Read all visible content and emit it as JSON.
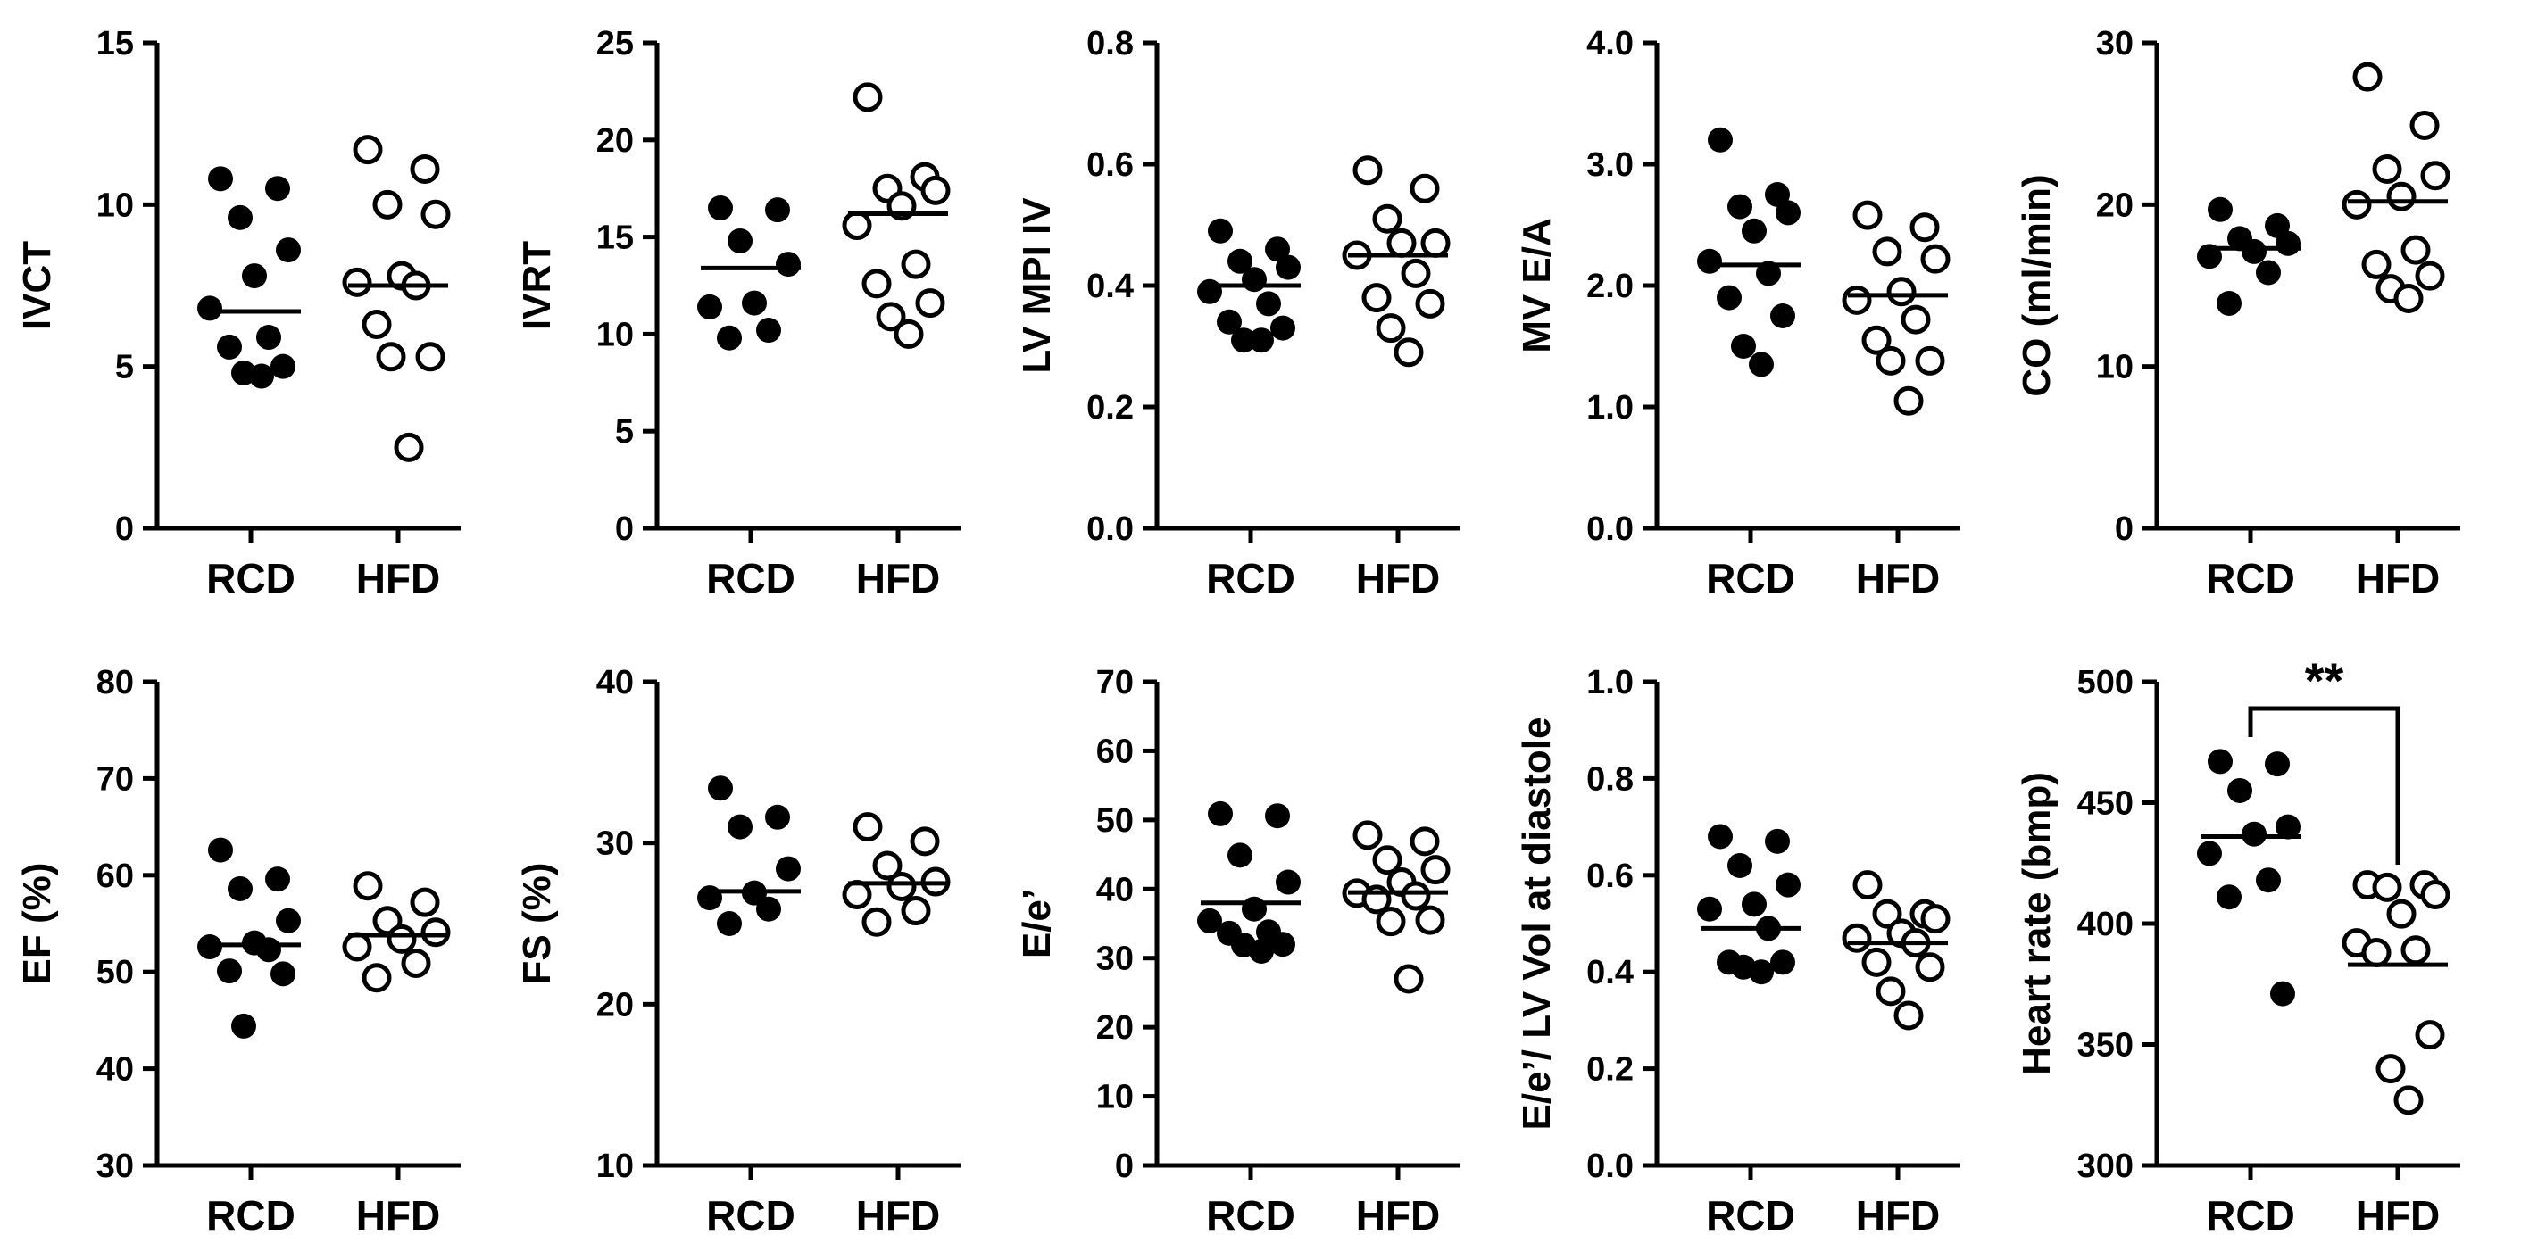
{
  "chart_data": [
    {
      "type": "scatter",
      "ylabel": "IVCT",
      "ylim": [
        0,
        15
      ],
      "yticks": [
        0,
        5,
        10,
        15
      ],
      "tick_labels": [
        "0",
        "5",
        "10",
        "15"
      ],
      "categories": [
        "RCD",
        "HFD"
      ],
      "series": [
        {
          "name": "RCD",
          "style": "filled",
          "values": [
            10.8,
            10.5,
            9.6,
            8.6,
            7.8,
            6.8,
            5.9,
            5.6,
            5.0,
            4.8,
            4.7
          ],
          "mean": 6.7
        },
        {
          "name": "HFD",
          "style": "open",
          "values": [
            11.7,
            11.1,
            10.0,
            9.7,
            7.8,
            7.6,
            7.5,
            6.3,
            5.3,
            5.3,
            2.5
          ],
          "mean": 7.5
        }
      ]
    },
    {
      "type": "scatter",
      "ylabel": "IVRT",
      "ylim": [
        0,
        25
      ],
      "yticks": [
        0,
        5,
        10,
        15,
        20,
        25
      ],
      "tick_labels": [
        "0",
        "5",
        "10",
        "15",
        "20",
        "25"
      ],
      "categories": [
        "RCD",
        "HFD"
      ],
      "series": [
        {
          "name": "RCD",
          "style": "filled",
          "values": [
            16.5,
            16.4,
            14.8,
            13.6,
            11.6,
            11.4,
            10.2,
            9.8
          ],
          "mean": 13.4
        },
        {
          "name": "HFD",
          "style": "open",
          "values": [
            22.2,
            18.1,
            17.5,
            17.4,
            16.6,
            15.6,
            13.6,
            12.6,
            11.6,
            10.9,
            10.0
          ],
          "mean": 16.2
        }
      ]
    },
    {
      "type": "scatter",
      "ylabel": "LV MPI IV",
      "ylim": [
        0.0,
        0.8
      ],
      "yticks": [
        0.0,
        0.2,
        0.4,
        0.6,
        0.8
      ],
      "tick_labels": [
        "0.0",
        "0.2",
        "0.4",
        "0.6",
        "0.8"
      ],
      "categories": [
        "RCD",
        "HFD"
      ],
      "series": [
        {
          "name": "RCD",
          "style": "filled",
          "values": [
            0.49,
            0.46,
            0.44,
            0.43,
            0.41,
            0.39,
            0.37,
            0.34,
            0.33,
            0.31,
            0.31
          ],
          "mean": 0.4
        },
        {
          "name": "HFD",
          "style": "open",
          "values": [
            0.59,
            0.56,
            0.51,
            0.47,
            0.47,
            0.45,
            0.42,
            0.38,
            0.37,
            0.33,
            0.29
          ],
          "mean": 0.45
        }
      ]
    },
    {
      "type": "scatter",
      "ylabel": "MV E/A",
      "ylim": [
        0.0,
        4.0
      ],
      "yticks": [
        0.0,
        1.0,
        2.0,
        3.0,
        4.0
      ],
      "tick_labels": [
        "0.0",
        "1.0",
        "2.0",
        "3.0",
        "4.0"
      ],
      "categories": [
        "RCD",
        "HFD"
      ],
      "series": [
        {
          "name": "RCD",
          "style": "filled",
          "values": [
            3.2,
            2.75,
            2.65,
            2.6,
            2.45,
            2.2,
            2.1,
            1.9,
            1.75,
            1.5,
            1.35
          ],
          "mean": 2.17
        },
        {
          "name": "HFD",
          "style": "open",
          "values": [
            2.58,
            2.48,
            2.28,
            2.22,
            1.95,
            1.88,
            1.72,
            1.55,
            1.38,
            1.38,
            1.05
          ],
          "mean": 1.92
        }
      ]
    },
    {
      "type": "scatter",
      "ylabel": "CO (ml/min)",
      "ylim": [
        0,
        30
      ],
      "yticks": [
        0,
        10,
        20,
        30
      ],
      "tick_labels": [
        "0",
        "10",
        "20",
        "30"
      ],
      "categories": [
        "RCD",
        "HFD"
      ],
      "series": [
        {
          "name": "RCD",
          "style": "filled",
          "values": [
            19.7,
            18.7,
            17.9,
            17.6,
            17.1,
            16.8,
            15.8,
            13.9
          ],
          "mean": 17.3
        },
        {
          "name": "HFD",
          "style": "open",
          "values": [
            27.9,
            24.9,
            22.2,
            21.8,
            20.5,
            20.0,
            17.2,
            16.3,
            15.6,
            14.8,
            14.2
          ],
          "mean": 20.2
        }
      ]
    },
    {
      "type": "scatter",
      "ylabel": "EF (%)",
      "ylim": [
        30,
        80
      ],
      "yticks": [
        30,
        40,
        50,
        60,
        70,
        80
      ],
      "tick_labels": [
        "30",
        "40",
        "50",
        "60",
        "70",
        "80"
      ],
      "categories": [
        "RCD",
        "HFD"
      ],
      "series": [
        {
          "name": "RCD",
          "style": "filled",
          "values": [
            62.6,
            59.6,
            58.6,
            55.3,
            53.0,
            52.6,
            52.3,
            50.1,
            49.8,
            44.4
          ],
          "mean": 52.8
        },
        {
          "name": "HFD",
          "style": "open",
          "values": [
            58.9,
            57.2,
            55.3,
            54.1,
            53.4,
            52.6,
            50.9,
            49.4
          ],
          "mean": 53.8
        }
      ]
    },
    {
      "type": "scatter",
      "ylabel": "FS (%)",
      "ylim": [
        10,
        40
      ],
      "yticks": [
        10,
        20,
        30,
        40
      ],
      "tick_labels": [
        "10",
        "20",
        "30",
        "40"
      ],
      "categories": [
        "RCD",
        "HFD"
      ],
      "series": [
        {
          "name": "RCD",
          "style": "filled",
          "values": [
            33.4,
            31.6,
            31.0,
            28.4,
            26.9,
            26.6,
            25.9,
            25.0
          ],
          "mean": 27.0
        },
        {
          "name": "HFD",
          "style": "open",
          "values": [
            31.0,
            30.1,
            28.6,
            27.6,
            27.3,
            26.8,
            25.8,
            25.1
          ],
          "mean": 27.5
        }
      ]
    },
    {
      "type": "scatter",
      "ylabel": "E/e’",
      "ylim": [
        0,
        70
      ],
      "yticks": [
        0,
        10,
        20,
        30,
        40,
        50,
        60,
        70
      ],
      "tick_labels": [
        "0",
        "10",
        "20",
        "30",
        "40",
        "50",
        "60",
        "70"
      ],
      "categories": [
        "RCD",
        "HFD"
      ],
      "series": [
        {
          "name": "RCD",
          "style": "filled",
          "values": [
            50.9,
            50.6,
            44.9,
            41.0,
            37.1,
            35.4,
            33.8,
            33.6,
            32.0,
            31.9,
            31.0
          ],
          "mean": 38.0
        },
        {
          "name": "HFD",
          "style": "open",
          "values": [
            47.8,
            46.9,
            44.2,
            42.8,
            41.0,
            39.4,
            39.0,
            38.5,
            35.5,
            35.3,
            27.0
          ],
          "mean": 39.5
        }
      ]
    },
    {
      "type": "scatter",
      "ylabel": "E/e’/ LV Vol at diastole",
      "ylim": [
        0.0,
        1.0
      ],
      "yticks": [
        0.0,
        0.2,
        0.4,
        0.6,
        0.8,
        1.0
      ],
      "tick_labels": [
        "0.0",
        "0.2",
        "0.4",
        "0.6",
        "0.8",
        "1.0"
      ],
      "categories": [
        "RCD",
        "HFD"
      ],
      "series": [
        {
          "name": "RCD",
          "style": "filled",
          "values": [
            0.68,
            0.67,
            0.62,
            0.58,
            0.54,
            0.53,
            0.49,
            0.42,
            0.42,
            0.41,
            0.4
          ],
          "mean": 0.49
        },
        {
          "name": "HFD",
          "style": "open",
          "values": [
            0.58,
            0.52,
            0.52,
            0.51,
            0.48,
            0.47,
            0.46,
            0.42,
            0.41,
            0.36,
            0.31
          ],
          "mean": 0.46
        }
      ]
    },
    {
      "type": "scatter",
      "ylabel": "Heart rate (bmp)",
      "ylim": [
        300,
        500
      ],
      "yticks": [
        300,
        350,
        400,
        450,
        500
      ],
      "tick_labels": [
        "300",
        "350",
        "400",
        "450",
        "500"
      ],
      "categories": [
        "RCD",
        "HFD"
      ],
      "significance": "**",
      "series": [
        {
          "name": "RCD",
          "style": "filled",
          "values": [
            467,
            466,
            455,
            440,
            437,
            429,
            418,
            411,
            371
          ],
          "mean": 436
        },
        {
          "name": "HFD",
          "style": "open",
          "values": [
            416,
            416,
            415,
            412,
            404,
            392,
            389,
            388,
            354,
            340,
            327
          ],
          "mean": 383
        }
      ]
    }
  ]
}
